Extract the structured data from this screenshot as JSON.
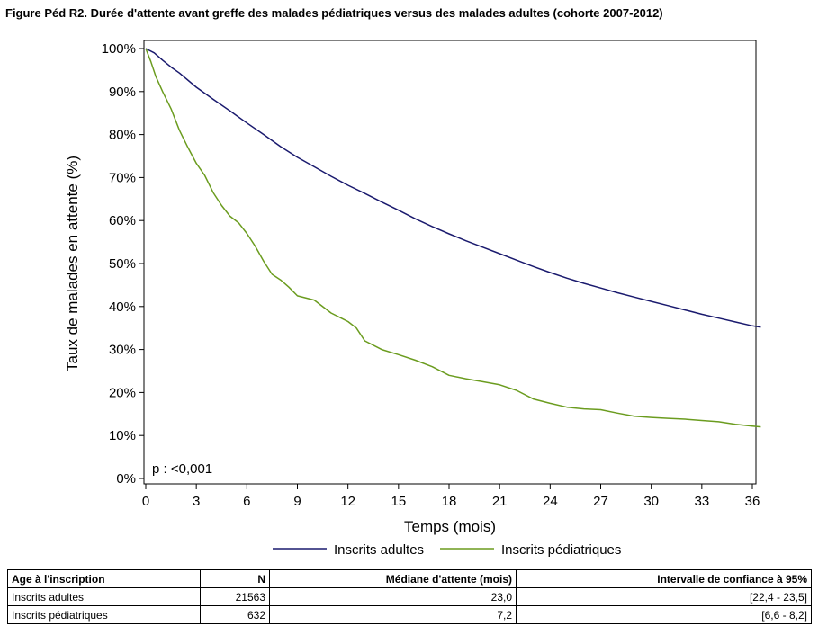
{
  "figure_title": "Figure Péd R2. Durée d'attente avant greffe des malades pédiatriques versus des malades adultes (cohorte 2007-2012)",
  "colors": {
    "adultes": "#1a1a6e",
    "pediatriques": "#6b9c1f",
    "frame": "#000000"
  },
  "chart_data": {
    "type": "line",
    "title": "Figure Péd R2. Durée d'attente avant greffe des malades pédiatriques versus des malades adultes (cohorte 2007-2012)",
    "xlabel": "Temps (mois)",
    "ylabel": "Taux de malades en attente (%)",
    "xlim": [
      0,
      36.5
    ],
    "ylim": [
      0,
      100
    ],
    "x_ticks": [
      0,
      3,
      6,
      9,
      12,
      15,
      18,
      21,
      24,
      27,
      30,
      33,
      36
    ],
    "y_ticks": [
      0,
      10,
      20,
      30,
      40,
      50,
      60,
      70,
      80,
      90,
      100
    ],
    "y_tick_labels": [
      "0%",
      "10%",
      "20%",
      "30%",
      "40%",
      "50%",
      "60%",
      "70%",
      "80%",
      "90%",
      "100%"
    ],
    "annotation": "p : <0,001",
    "legend_position": "bottom-center",
    "grid": false,
    "series": [
      {
        "name": "Inscrits adultes",
        "x": [
          0,
          0.5,
          1,
          1.5,
          2,
          3,
          4,
          5,
          6,
          7,
          8,
          9,
          10,
          11,
          12,
          13,
          14,
          15,
          16,
          17,
          18,
          19,
          20,
          21,
          22,
          23,
          24,
          25,
          26,
          27,
          28,
          29,
          30,
          31,
          32,
          33,
          34,
          35,
          36,
          36.5
        ],
        "y": [
          100,
          99,
          97.3,
          95.7,
          94.3,
          91,
          88.2,
          85.5,
          82.7,
          80,
          77.2,
          74.7,
          72.5,
          70.3,
          68.2,
          66.3,
          64.3,
          62.4,
          60.4,
          58.6,
          56.9,
          55.3,
          53.8,
          52.3,
          50.8,
          49.3,
          47.9,
          46.6,
          45.4,
          44.3,
          43.2,
          42.2,
          41.2,
          40.2,
          39.2,
          38.2,
          37.3,
          36.4,
          35.5,
          35.2
        ]
      },
      {
        "name": "Inscrits pédiatriques",
        "x": [
          0,
          0.3,
          0.6,
          1,
          1.5,
          2,
          2.5,
          3,
          3.5,
          4,
          4.5,
          5,
          5.5,
          6,
          6.5,
          7,
          7.5,
          8,
          8.5,
          9,
          10,
          11,
          12,
          12.5,
          13,
          14,
          15,
          16,
          17,
          18,
          19,
          20,
          21,
          22,
          23,
          24,
          25,
          26,
          27,
          28,
          29,
          30,
          31,
          32,
          33,
          34,
          35,
          36,
          36.5
        ],
        "y": [
          100,
          97,
          93.5,
          90,
          86,
          81,
          77,
          73.3,
          70.5,
          66.5,
          63.5,
          61,
          59.5,
          57,
          54,
          50.5,
          47.5,
          46.2,
          44.5,
          42.5,
          41.5,
          38.5,
          36.5,
          35,
          32,
          30,
          28.8,
          27.5,
          26,
          24,
          23.2,
          22.5,
          21.8,
          20.5,
          18.5,
          17.5,
          16.6,
          16.2,
          16,
          15.2,
          14.5,
          14.2,
          14,
          13.8,
          13.5,
          13.2,
          12.6,
          12.2,
          12
        ]
      }
    ]
  },
  "table": {
    "headers": [
      "Age à l'inscription",
      "N",
      "Médiane d'attente (mois)",
      "Intervalle de confiance à 95%"
    ],
    "rows": [
      [
        "Inscrits adultes",
        "21563",
        "23,0",
        "[22,4 - 23,5]"
      ],
      [
        "Inscrits pédiatriques",
        "632",
        "7,2",
        "[6,6 - 8,2]"
      ]
    ]
  }
}
